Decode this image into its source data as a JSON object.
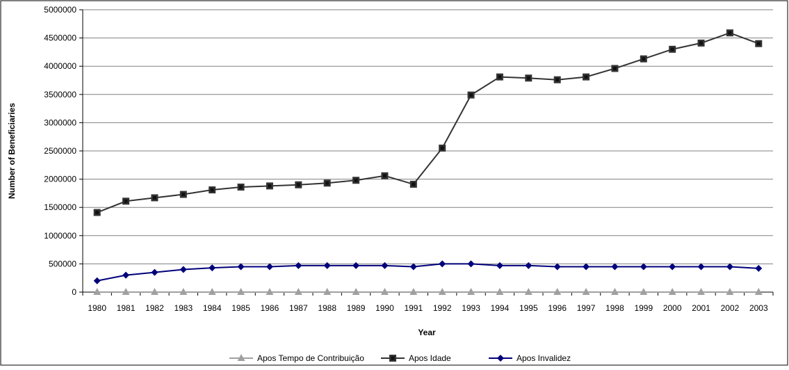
{
  "chart_data": {
    "type": "line",
    "xlabel": "Year",
    "ylabel": "Number of Beneficiaries",
    "ylim": [
      0,
      5000000
    ],
    "yticks": [
      0,
      500000,
      1000000,
      1500000,
      2000000,
      2500000,
      3000000,
      3500000,
      4000000,
      4500000,
      5000000
    ],
    "grid": "horizontal",
    "legend_position": "bottom",
    "x": [
      "1980",
      "1981",
      "1982",
      "1983",
      "1984",
      "1985",
      "1986",
      "1987",
      "1988",
      "1989",
      "1990",
      "1991",
      "1992",
      "1993",
      "1994",
      "1995",
      "1996",
      "1997",
      "1998",
      "1999",
      "2000",
      "2001",
      "2002",
      "2003"
    ],
    "series": [
      {
        "name": "Apos Tempo de Contribuição",
        "color": "#a0a0a0",
        "marker": "triangle",
        "values": [
          0,
          0,
          0,
          0,
          0,
          0,
          0,
          0,
          0,
          0,
          0,
          0,
          0,
          0,
          0,
          0,
          0,
          0,
          0,
          0,
          0,
          0,
          0,
          0
        ]
      },
      {
        "name": "Apos Idade",
        "color": "#333333",
        "marker": "square",
        "values": [
          1410000,
          1610000,
          1670000,
          1730000,
          1810000,
          1860000,
          1880000,
          1900000,
          1930000,
          1980000,
          2060000,
          1910000,
          2550000,
          3490000,
          3810000,
          3790000,
          3760000,
          3810000,
          3960000,
          4130000,
          4300000,
          4410000,
          4590000,
          4400000
        ]
      },
      {
        "name": "Apos Invalidez",
        "color": "#00007a",
        "marker": "diamond",
        "values": [
          200000,
          300000,
          350000,
          400000,
          430000,
          450000,
          450000,
          470000,
          470000,
          470000,
          470000,
          450000,
          500000,
          500000,
          470000,
          470000,
          450000,
          450000,
          450000,
          450000,
          450000,
          450000,
          450000,
          420000
        ]
      }
    ]
  }
}
